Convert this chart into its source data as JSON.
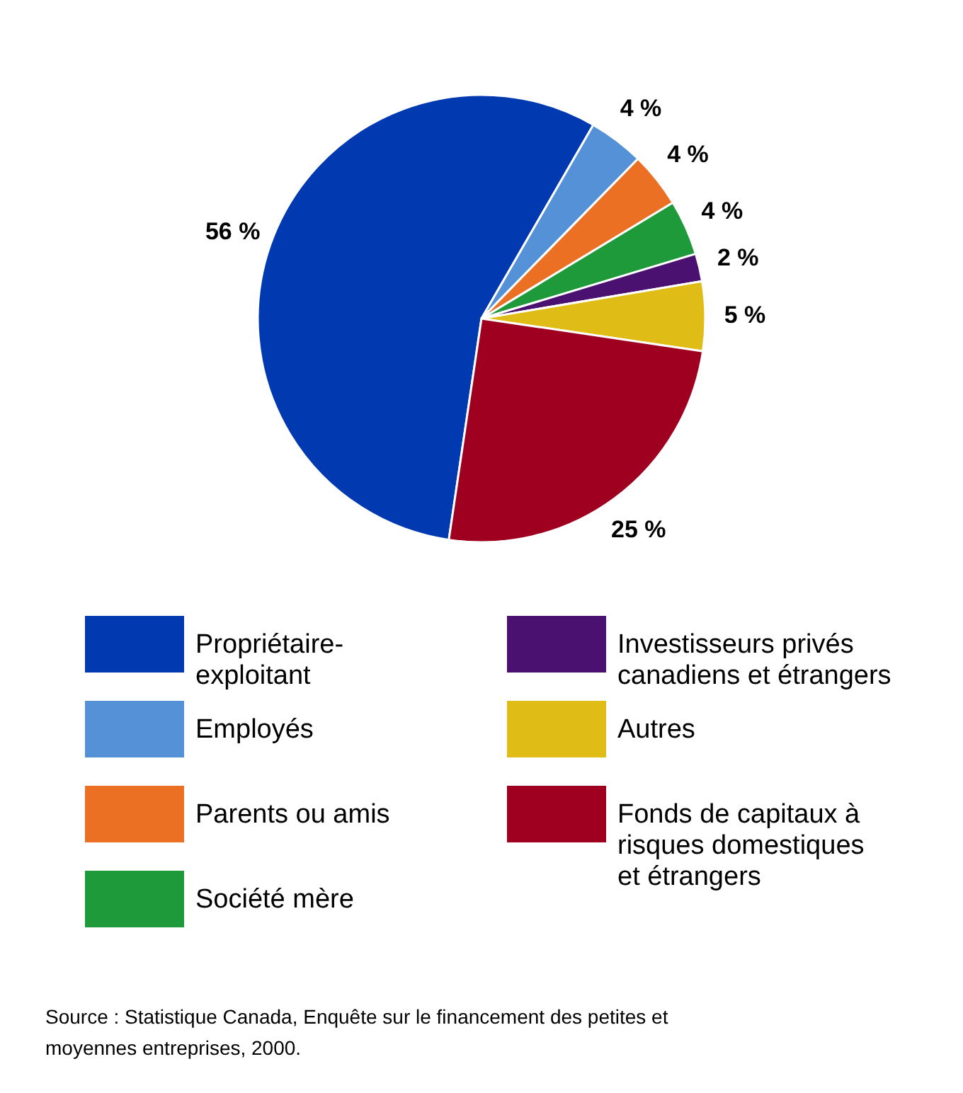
{
  "chart_data": {
    "type": "pie",
    "categories": [
      "Propriétaire-\nexploitant",
      "Employés",
      "Parents ou amis",
      "Société mère",
      "Investisseurs privés\ncanadiens et étrangers",
      "Autres",
      "Fonds de capitaux à\nrisques domestiques\net étrangers"
    ],
    "values": [
      56,
      4,
      4,
      4,
      2,
      5,
      25
    ],
    "colors": [
      "#0039b0",
      "#5591d6",
      "#eb7023",
      "#1f9a3a",
      "#4a1170",
      "#e0bd16",
      "#a0001f"
    ],
    "value_labels": [
      "56 %",
      "4 %",
      "4 %",
      "4 %",
      "2 %",
      "5 %",
      "25 %"
    ],
    "legend": "bottom",
    "annotations": [
      "Source : Statistique Canada, Enquête sur le financement des petites et\nmoyennes entreprises, 2000."
    ]
  }
}
